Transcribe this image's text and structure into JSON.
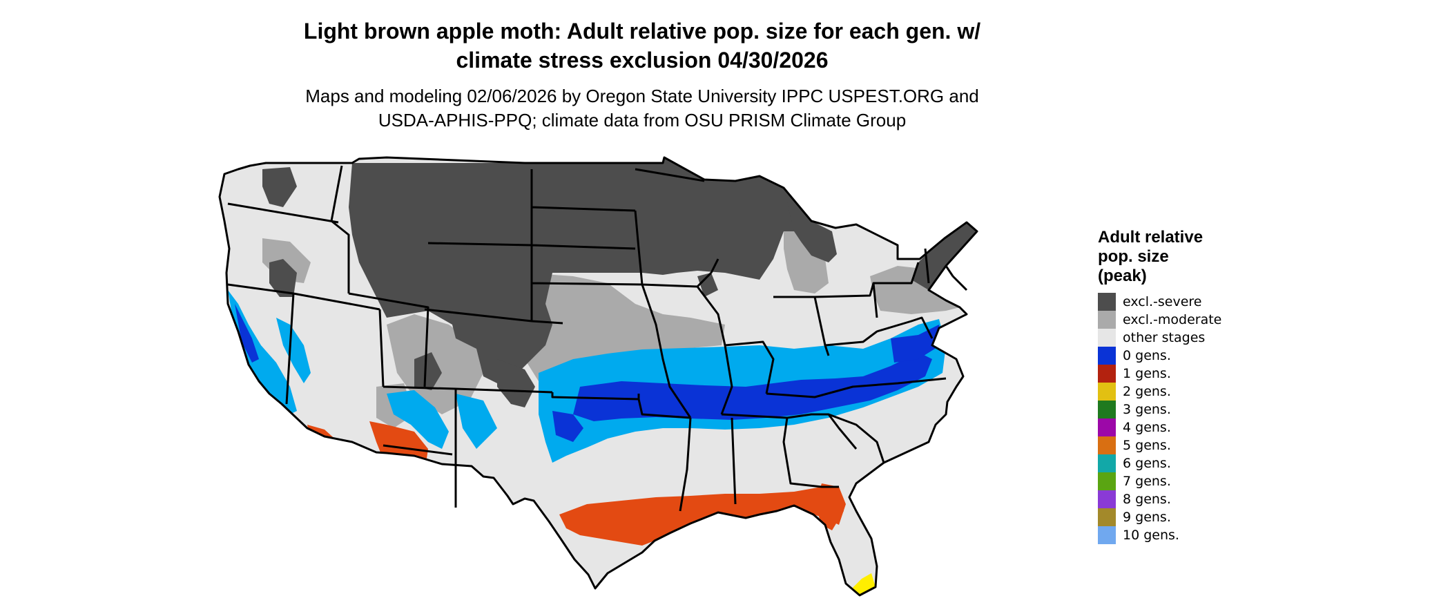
{
  "title": {
    "line1": "Light brown apple moth: Adult relative pop. size for each gen. w/",
    "line2": "climate stress exclusion 04/30/2026"
  },
  "subtitle": {
    "line1": "Maps and modeling 02/06/2026 by Oregon State University IPPC USPEST.ORG and",
    "line2": "USDA-APHIS-PPQ; climate data from OSU PRISM Climate Group"
  },
  "legend": {
    "title_lines": [
      "Adult relative",
      "pop. size",
      "(peak)"
    ],
    "items": [
      {
        "label": "excl.-severe",
        "color": "#4d4d4d"
      },
      {
        "label": "excl.-moderate",
        "color": "#aaaaaa"
      },
      {
        "label": "other stages",
        "color": "#e6e6e6"
      },
      {
        "label": "0 gens.",
        "color": "#0a33d6"
      },
      {
        "label": "1 gens.",
        "color": "#b3220f"
      },
      {
        "label": "2 gens.",
        "color": "#e2c012"
      },
      {
        "label": "3 gens.",
        "color": "#1f7a1f"
      },
      {
        "label": "4 gens.",
        "color": "#9c08a8"
      },
      {
        "label": "5 gens.",
        "color": "#d96f12"
      },
      {
        "label": "6 gens.",
        "color": "#12a8a8"
      },
      {
        "label": "7 gens.",
        "color": "#5aa512"
      },
      {
        "label": "8 gens.",
        "color": "#8a3ad6"
      },
      {
        "label": "9 gens.",
        "color": "#a3892a"
      },
      {
        "label": "10 gens.",
        "color": "#70a8ef"
      }
    ]
  },
  "map_colors": {
    "other_stages": "#e6e6e6",
    "excl_moderate": "#aaaaaa",
    "excl_severe": "#4d4d4d",
    "zero_gens_dark": "#0a33d6",
    "zero_gens_light": "#00aaee",
    "one_gen": "#e34a12",
    "two_gens": "#ffee00",
    "border": "#000000"
  }
}
